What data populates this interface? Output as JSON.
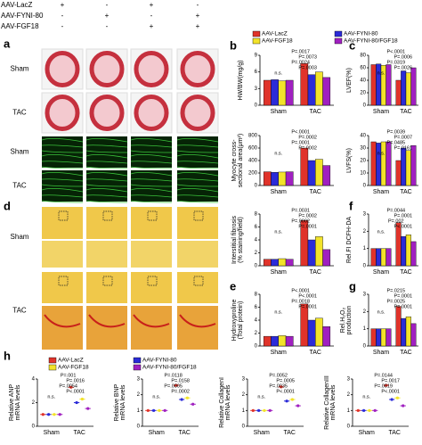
{
  "matrix": {
    "rows": [
      "AAV-LacZ",
      "AAV-FYNI-80",
      "AAV-FGF18"
    ],
    "signs": [
      [
        "+",
        "-",
        "+",
        "-"
      ],
      [
        "-",
        "+",
        "-",
        "+"
      ],
      [
        "-",
        "-",
        "+",
        "+"
      ]
    ]
  },
  "panel_letters": [
    "a",
    "b",
    "c",
    "d",
    "e",
    "f",
    "g",
    "h"
  ],
  "image_rows": {
    "a": [
      "Sham",
      "TAC",
      "Sham",
      "TAC"
    ],
    "d": [
      "Sham",
      "TAC"
    ]
  },
  "chart_data": [
    {
      "type": "bar",
      "ylabel": [
        "HW/BW(mg/g)"
      ],
      "categories": [
        "Sham",
        "TAC"
      ],
      "ylim": [
        0,
        9
      ],
      "yticks": [
        0,
        3,
        6,
        9
      ],
      "series": [
        {
          "name": "AAV-LacZ",
          "color": "#e0332a",
          "values": [
            4.5,
            7.5
          ]
        },
        {
          "name": "AAV-FYNI-80",
          "color": "#2b2bd8",
          "values": [
            4.6,
            5.5
          ]
        },
        {
          "name": "AAV-FGF18",
          "color": "#f2e32a",
          "values": [
            4.4,
            6
          ]
        },
        {
          "name": "AAV-FYNI-80/FGF18",
          "color": "#a020c0",
          "values": [
            4.5,
            5
          ]
        }
      ],
      "annotations": [
        "P=.0017",
        "P=.0073",
        "P=.0024",
        "P=.0003",
        "n.s."
      ]
    },
    {
      "type": "bar",
      "ylabel": [
        "LVEF(%)"
      ],
      "categories": [
        "Sham",
        "TAC"
      ],
      "ylim": [
        0,
        80
      ],
      "yticks": [
        0,
        20,
        40,
        60,
        80
      ],
      "series": [
        {
          "color": "#e0332a",
          "values": [
            65,
            40
          ]
        },
        {
          "color": "#2b2bd8",
          "values": [
            66,
            55
          ]
        },
        {
          "color": "#f2e32a",
          "values": [
            64,
            52
          ]
        },
        {
          "color": "#a020c0",
          "values": [
            65,
            60
          ]
        }
      ],
      "annotations": [
        "P<.0001",
        "P=.0006",
        "P=.0319",
        "P=.0026",
        "n.s."
      ]
    },
    {
      "type": "bar",
      "ylabel": [
        "Myocyte cross-",
        "sectional area(μm²)"
      ],
      "categories": [
        "Sham",
        "TAC"
      ],
      "ylim": [
        0,
        800
      ],
      "yticks": [
        0,
        200,
        400,
        600,
        800
      ],
      "series": [
        {
          "color": "#e0332a",
          "values": [
            220,
            600
          ]
        },
        {
          "color": "#2b2bd8",
          "values": [
            210,
            400
          ]
        },
        {
          "color": "#f2e32a",
          "values": [
            215,
            420
          ]
        },
        {
          "color": "#a020c0",
          "values": [
            220,
            320
          ]
        }
      ],
      "annotations": [
        "P<.0001",
        "P=.0002",
        "P=.0001",
        "P=.0002",
        "n.s."
      ]
    },
    {
      "type": "bar",
      "ylabel": [
        "LVFS(%)"
      ],
      "categories": [
        "Sham",
        "TAC"
      ],
      "ylim": [
        0,
        40
      ],
      "yticks": [
        0,
        10,
        20,
        30,
        40
      ],
      "series": [
        {
          "color": "#e0332a",
          "values": [
            35,
            20
          ]
        },
        {
          "color": "#2b2bd8",
          "values": [
            34,
            30
          ]
        },
        {
          "color": "#f2e32a",
          "values": [
            35,
            28
          ]
        },
        {
          "color": "#a020c0",
          "values": [
            35,
            32
          ]
        }
      ],
      "annotations": [
        "P=.0039",
        "P=.0007",
        "P=.0485",
        "P=.0161",
        "n.s."
      ]
    },
    {
      "type": "bar",
      "ylabel": [
        "Interstitial fibrosis",
        "(% staining/field)"
      ],
      "categories": [
        "Sham",
        "TAC"
      ],
      "ylim": [
        0,
        8
      ],
      "yticks": [
        0,
        2,
        4,
        6,
        8
      ],
      "series": [
        {
          "color": "#e0332a",
          "values": [
            1,
            7
          ]
        },
        {
          "color": "#2b2bd8",
          "values": [
            1,
            4
          ]
        },
        {
          "color": "#f2e32a",
          "values": [
            1.1,
            4.5
          ]
        },
        {
          "color": "#a020c0",
          "values": [
            1,
            2.5
          ]
        }
      ],
      "annotations": [
        "P=.0031",
        "P=.0002",
        "P=.0002",
        "P=.0001",
        "n.s."
      ]
    },
    {
      "type": "bar",
      "ylabel": [
        "Rel.FI DCFH-DA"
      ],
      "categories": [
        "Sham",
        "TAC"
      ],
      "ylim": [
        0,
        3
      ],
      "yticks": [
        0,
        1,
        2,
        3
      ],
      "series": [
        {
          "color": "#e0332a",
          "values": [
            1,
            2.5
          ]
        },
        {
          "color": "#2b2bd8",
          "values": [
            1,
            1.7
          ]
        },
        {
          "color": "#f2e32a",
          "values": [
            1,
            1.8
          ]
        },
        {
          "color": "#a020c0",
          "values": [
            1,
            1.4
          ]
        }
      ],
      "annotations": [
        "P=.0044",
        "P=.0001",
        "P=.002",
        "P<.0001",
        "n.s."
      ]
    },
    {
      "type": "bar",
      "ylabel": [
        "Hydroxyproline",
        "(Total protein)"
      ],
      "categories": [
        "Sham",
        "TAC"
      ],
      "ylim": [
        0,
        8
      ],
      "yticks": [
        0,
        2,
        4,
        6,
        8
      ],
      "series": [
        {
          "color": "#e0332a",
          "values": [
            1.5,
            6.5
          ]
        },
        {
          "color": "#2b2bd8",
          "values": [
            1.5,
            4
          ]
        },
        {
          "color": "#f2e32a",
          "values": [
            1.6,
            4.3
          ]
        },
        {
          "color": "#a020c0",
          "values": [
            1.5,
            3
          ]
        }
      ],
      "annotations": [
        "P<.0001",
        "P<.0001",
        "P=.0018",
        "P=.0001",
        "n.s."
      ]
    },
    {
      "type": "bar",
      "ylabel": [
        "Rel.H₂O₂",
        "production"
      ],
      "categories": [
        "Sham",
        "TAC"
      ],
      "ylim": [
        0,
        3
      ],
      "yticks": [
        0,
        1,
        2,
        3
      ],
      "series": [
        {
          "color": "#e0332a",
          "values": [
            1,
            2.3
          ]
        },
        {
          "color": "#2b2bd8",
          "values": [
            1,
            1.6
          ]
        },
        {
          "color": "#f2e32a",
          "values": [
            1,
            1.7
          ]
        },
        {
          "color": "#a020c0",
          "values": [
            1,
            1.3
          ]
        }
      ],
      "annotations": [
        "P=.0215",
        "P=.0001",
        "P=.0025",
        "P=.0001",
        "n.s."
      ]
    },
    {
      "type": "dot",
      "ylabel": [
        "Relative ANP",
        "mRNA levels"
      ],
      "categories": [
        "Sham",
        "TAC"
      ],
      "ylim": [
        0,
        4
      ],
      "yticks": [
        0,
        2,
        4
      ],
      "series": [
        {
          "name": "AAV-LacZ",
          "color": "#e0332a",
          "values": [
            1,
            3.3
          ]
        },
        {
          "name": "AAV-FYNI-80",
          "color": "#2b2bd8",
          "values": [
            1,
            2
          ]
        },
        {
          "name": "AAV-FGF18",
          "color": "#f2e32a",
          "values": [
            1,
            2.3
          ]
        },
        {
          "name": "AAV-FYNI-80/FGF18",
          "color": "#a020c0",
          "values": [
            1,
            1.5
          ]
        }
      ],
      "annotations": [
        "P=.001",
        "P=.0016",
        "P=.0054",
        "P<.0001",
        "n.s."
      ]
    },
    {
      "type": "dot",
      "ylabel": [
        "Relative BNP",
        "mRNA levels"
      ],
      "categories": [
        "Sham",
        "TAC"
      ],
      "ylim": [
        0,
        3
      ],
      "yticks": [
        0,
        1,
        2,
        3
      ],
      "series": [
        {
          "color": "#e0332a",
          "values": [
            1,
            2.6
          ]
        },
        {
          "color": "#2b2bd8",
          "values": [
            1,
            1.7
          ]
        },
        {
          "color": "#f2e32a",
          "values": [
            1,
            1.8
          ]
        },
        {
          "color": "#a020c0",
          "values": [
            1,
            1.4
          ]
        }
      ],
      "annotations": [
        "P=.0118",
        "P=.0158",
        "P=.0005",
        "P=.0002",
        "n.s."
      ]
    },
    {
      "type": "dot",
      "ylabel": [
        "Relative CollagenI",
        "mRNA levels"
      ],
      "categories": [
        "Sham",
        "TAC"
      ],
      "ylim": [
        0,
        3
      ],
      "yticks": [
        0,
        1,
        2,
        3
      ],
      "series": [
        {
          "color": "#e0332a",
          "values": [
            1,
            2.5
          ]
        },
        {
          "color": "#2b2bd8",
          "values": [
            1,
            1.6
          ]
        },
        {
          "color": "#f2e32a",
          "values": [
            1,
            1.7
          ]
        },
        {
          "color": "#a020c0",
          "values": [
            1,
            1.3
          ]
        }
      ],
      "annotations": [
        "P=.0052",
        "P=.0005",
        "P=.0035",
        "P<.0001",
        "n.s."
      ]
    },
    {
      "type": "dot",
      "ylabel": [
        "Relative CollagenIII",
        "mRNA levels"
      ],
      "categories": [
        "Sham",
        "TAC"
      ],
      "ylim": [
        0,
        3
      ],
      "yticks": [
        0,
        1,
        2,
        3
      ],
      "series": [
        {
          "color": "#e0332a",
          "values": [
            1,
            2.6
          ]
        },
        {
          "color": "#2b2bd8",
          "values": [
            1,
            1.7
          ]
        },
        {
          "color": "#f2e32a",
          "values": [
            1,
            1.8
          ]
        },
        {
          "color": "#a020c0",
          "values": [
            1,
            1.3
          ]
        }
      ],
      "annotations": [
        "P=.0144",
        "P=.0017",
        "P=.0019",
        "P<.0001",
        "n.s."
      ]
    }
  ]
}
